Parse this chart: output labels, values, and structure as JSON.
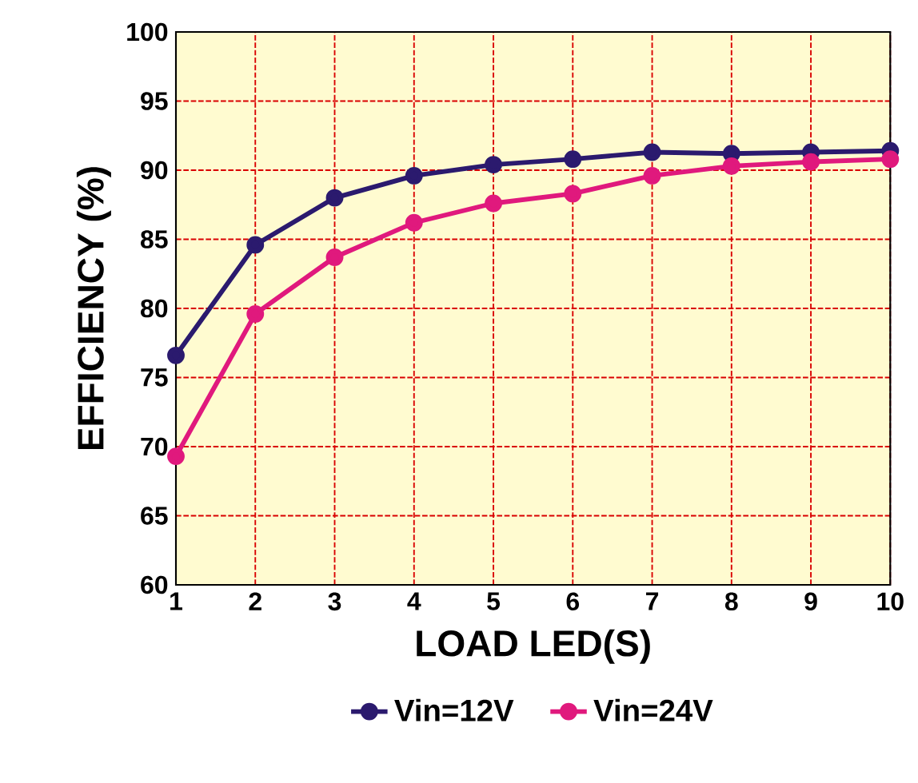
{
  "chart_data": {
    "type": "line",
    "xlabel": "LOAD LED(S)",
    "ylabel": "EFFICIENCY (%)",
    "x": [
      1,
      2,
      3,
      4,
      5,
      6,
      7,
      8,
      9,
      10
    ],
    "series": [
      {
        "name": "Vin=12V",
        "color": "#2b1a6e",
        "values": [
          76.6,
          84.6,
          88.0,
          89.6,
          90.4,
          90.8,
          91.3,
          91.2,
          91.3,
          91.4
        ]
      },
      {
        "name": "Vin=24V",
        "color": "#e0197d",
        "values": [
          69.3,
          79.6,
          83.7,
          86.2,
          87.6,
          88.3,
          89.6,
          90.3,
          90.6,
          90.8
        ]
      }
    ],
    "xlim": [
      1,
      10
    ],
    "ylim": [
      60,
      100
    ],
    "xticks": [
      1,
      2,
      3,
      4,
      5,
      6,
      7,
      8,
      9,
      10
    ],
    "yticks": [
      60,
      65,
      70,
      75,
      80,
      85,
      90,
      95,
      100
    ],
    "grid": true,
    "legend": "bottom",
    "marker": "circle",
    "line_style": "solid"
  }
}
